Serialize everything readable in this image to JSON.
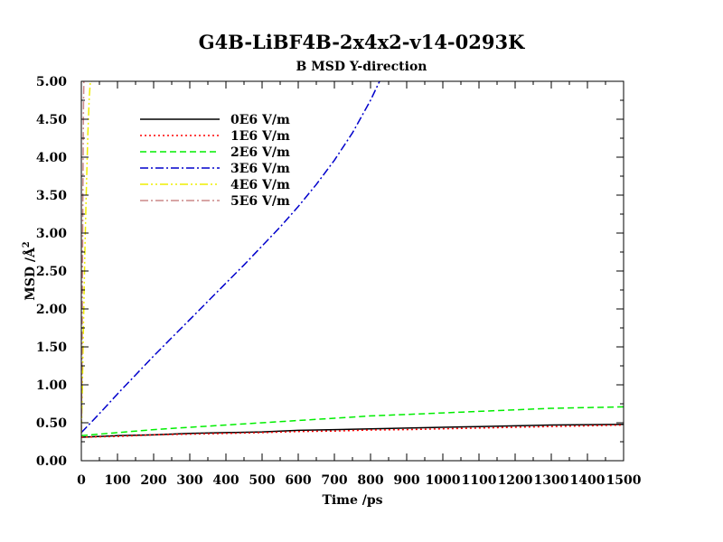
{
  "chart_data": {
    "type": "line",
    "title": "G4B-LiBF4B-2x4x2-v14-0293K",
    "subtitle": "B MSD Y-direction",
    "xlabel": "Time /ps",
    "ylabel": "MSD /Å",
    "ylabel_sup": "2",
    "xlim": [
      0,
      1500
    ],
    "ylim": [
      0,
      5
    ],
    "xticks": [
      0,
      100,
      200,
      300,
      400,
      500,
      600,
      700,
      800,
      900,
      1000,
      1100,
      1200,
      1300,
      1400,
      1500
    ],
    "yticks": [
      "0.00",
      "0.50",
      "1.00",
      "1.50",
      "2.00",
      "2.50",
      "3.00",
      "3.50",
      "4.00",
      "4.50",
      "5.00"
    ],
    "grid": false,
    "legend_position": "top-left",
    "series": [
      {
        "name": "0E6 V/m",
        "color": "#000000",
        "dash": "solid",
        "points": [
          [
            0,
            0.31
          ],
          [
            100,
            0.33
          ],
          [
            200,
            0.34
          ],
          [
            300,
            0.36
          ],
          [
            400,
            0.37
          ],
          [
            500,
            0.38
          ],
          [
            600,
            0.4
          ],
          [
            700,
            0.41
          ],
          [
            800,
            0.42
          ],
          [
            900,
            0.43
          ],
          [
            1000,
            0.44
          ],
          [
            1100,
            0.45
          ],
          [
            1200,
            0.46
          ],
          [
            1300,
            0.47
          ],
          [
            1400,
            0.475
          ],
          [
            1500,
            0.48
          ]
        ]
      },
      {
        "name": "1E6 V/m",
        "color": "#ff0000",
        "dash": "dotted",
        "points": [
          [
            0,
            0.31
          ],
          [
            100,
            0.32
          ],
          [
            200,
            0.34
          ],
          [
            300,
            0.35
          ],
          [
            400,
            0.36
          ],
          [
            500,
            0.37
          ],
          [
            600,
            0.385
          ],
          [
            700,
            0.39
          ],
          [
            800,
            0.405
          ],
          [
            900,
            0.41
          ],
          [
            1000,
            0.42
          ],
          [
            1100,
            0.43
          ],
          [
            1200,
            0.44
          ],
          [
            1300,
            0.45
          ],
          [
            1400,
            0.46
          ],
          [
            1500,
            0.47
          ]
        ]
      },
      {
        "name": "2E6 V/m",
        "color": "#00ee00",
        "dash": "dashed",
        "points": [
          [
            0,
            0.33
          ],
          [
            100,
            0.37
          ],
          [
            200,
            0.41
          ],
          [
            300,
            0.44
          ],
          [
            400,
            0.47
          ],
          [
            500,
            0.5
          ],
          [
            600,
            0.53
          ],
          [
            700,
            0.56
          ],
          [
            800,
            0.59
          ],
          [
            900,
            0.61
          ],
          [
            1000,
            0.63
          ],
          [
            1100,
            0.65
          ],
          [
            1200,
            0.67
          ],
          [
            1300,
            0.69
          ],
          [
            1400,
            0.7
          ],
          [
            1500,
            0.71
          ]
        ]
      },
      {
        "name": "3E6 V/m",
        "color": "#0000cc",
        "dash": "dashdot",
        "points": [
          [
            0,
            0.37
          ],
          [
            50,
            0.62
          ],
          [
            100,
            0.88
          ],
          [
            150,
            1.13
          ],
          [
            200,
            1.38
          ],
          [
            250,
            1.62
          ],
          [
            300,
            1.86
          ],
          [
            350,
            2.1
          ],
          [
            400,
            2.34
          ],
          [
            450,
            2.58
          ],
          [
            500,
            2.83
          ],
          [
            550,
            3.08
          ],
          [
            600,
            3.35
          ],
          [
            650,
            3.64
          ],
          [
            700,
            3.96
          ],
          [
            750,
            4.32
          ],
          [
            800,
            4.75
          ],
          [
            825,
            5.0
          ]
        ]
      },
      {
        "name": "4E6 V/m",
        "color": "#eeee00",
        "dash": "dashdotdot",
        "points": [
          [
            0,
            0.36
          ],
          [
            3,
            1.0
          ],
          [
            6,
            1.8
          ],
          [
            10,
            2.8
          ],
          [
            14,
            3.6
          ],
          [
            18,
            4.3
          ],
          [
            22,
            4.8
          ],
          [
            25,
            5.0
          ],
          [
            27,
            5.0
          ],
          [
            29,
            5.0
          ]
        ]
      },
      {
        "name": "5E6 V/m",
        "color": "#cc8888",
        "dash": "dashdot",
        "points": [
          [
            0,
            0.38
          ],
          [
            1,
            0.9
          ],
          [
            2,
            1.6
          ],
          [
            3,
            2.4
          ],
          [
            4,
            3.2
          ],
          [
            5,
            4.0
          ],
          [
            6,
            4.7
          ],
          [
            7,
            5.0
          ]
        ]
      }
    ]
  }
}
